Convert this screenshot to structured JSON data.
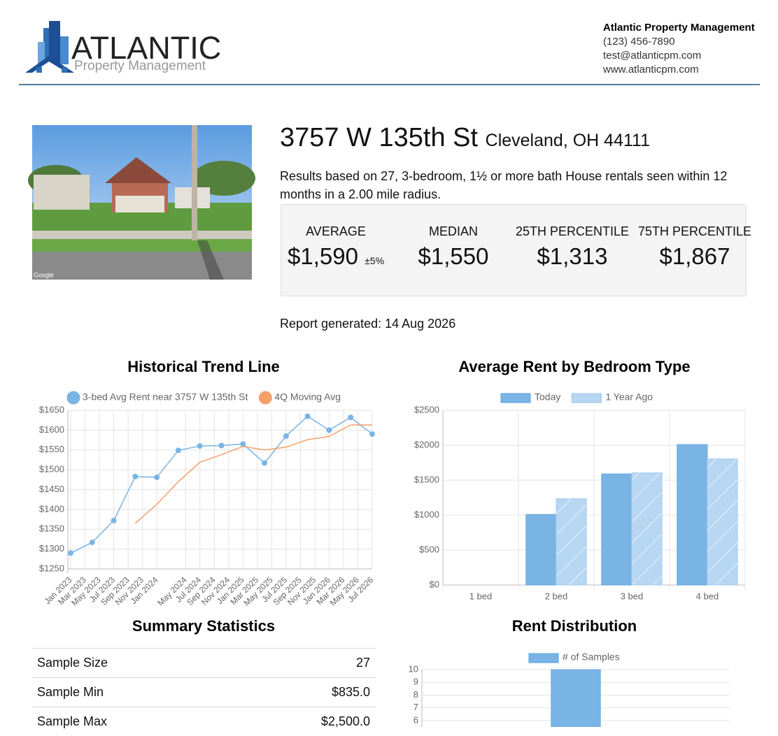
{
  "header": {
    "logo_word": "ATLANTIC",
    "logo_sub": "Property Management",
    "company": "Atlantic Property Management",
    "phone": "(123) 456-7890",
    "email": "test@atlanticpm.com",
    "website": "www.atlanticpm.com"
  },
  "property": {
    "street": "3757 W 135th St",
    "city": "Cleveland, OH 44111",
    "description": "Results based on 27, 3-bedroom, 1½ or more bath House rentals seen within 12 months in a 2.00 mile radius.",
    "photo_credit": "Google"
  },
  "stats": [
    {
      "label": "AVERAGE",
      "value": "$1,590",
      "margin": "±5%"
    },
    {
      "label": "MEDIAN",
      "value": "$1,550"
    },
    {
      "label": "25TH PERCENTILE",
      "value": "$1,313"
    },
    {
      "label": "75TH PERCENTILE",
      "value": "$1,867"
    }
  ],
  "report": "Report generated: 14 Aug 2026",
  "chart_data": [
    {
      "type": "line",
      "title": "Historical Trend Line",
      "x": [
        "Jan 2023",
        "Apr 2023",
        "Jul 2023",
        "Oct 2023",
        "Jan 2024",
        "Apr 2024",
        "Jul 2024",
        "Oct 2024",
        "Jan 2025",
        "Apr 2025",
        "Jul 2025",
        "Oct 2025",
        "Jan 2026",
        "Apr 2026",
        "Jul 2026"
      ],
      "xlim": [
        "Jan 2023",
        "Jul 2026"
      ],
      "xticks": [
        "Jan 2023",
        "Mar 2023",
        "May 2023",
        "Jul 2023",
        "Sep 2023",
        "Nov 2023",
        "Jan 2024",
        "May 2024",
        "Jul 2024",
        "Sep 2024",
        "Nov 2024",
        "Jan 2025",
        "Mar 2025",
        "May 2025",
        "Jul 2025",
        "Sep 2025",
        "Nov 2025",
        "Jan 2026",
        "Mar 2026",
        "May 2026",
        "Jul 2026"
      ],
      "ylim": [
        1250,
        1650
      ],
      "yticks": [
        {
          "value": 1250,
          "label": "$1250"
        },
        {
          "value": 1300,
          "label": "$1300"
        },
        {
          "value": 1350,
          "label": "$1350"
        },
        {
          "value": 1400,
          "label": "$1400"
        },
        {
          "value": 1450,
          "label": "$1450"
        },
        {
          "value": 1500,
          "label": "$1500"
        },
        {
          "value": 1550,
          "label": "$1550"
        },
        {
          "value": 1600,
          "label": "$1600"
        },
        {
          "value": 1650,
          "label": "$1650"
        }
      ],
      "grid": true,
      "legend": "top",
      "series": [
        {
          "name": "3-bed Avg Rent near 3757 W 135th St",
          "color": "#7ab4e5",
          "points": true,
          "values": [
            1290,
            1317,
            1372,
            1483,
            1481,
            1549,
            1560,
            1561,
            1565,
            1517,
            1585,
            1635,
            1600,
            1632,
            1590
          ]
        },
        {
          "name": "4Q Moving Avg",
          "color": "#f5a06a",
          "points": false,
          "values": [
            null,
            null,
            null,
            1365,
            1413,
            1470,
            1519,
            1538,
            1559,
            1550,
            1557,
            1576,
            1584,
            1613,
            1613
          ]
        }
      ]
    },
    {
      "type": "bar",
      "title": "Average Rent by Bedroom Type",
      "categories": [
        "1 bed",
        "2 bed",
        "3 bed",
        "4 bed"
      ],
      "ylim": [
        0,
        2500
      ],
      "yticks": [
        {
          "value": 0,
          "label": "$0"
        },
        {
          "value": 500,
          "label": "$500"
        },
        {
          "value": 1000,
          "label": "$1000"
        },
        {
          "value": 1500,
          "label": "$1500"
        },
        {
          "value": 2000,
          "label": "$2000"
        },
        {
          "value": 2500,
          "label": "$2500"
        }
      ],
      "grid": true,
      "legend": "top",
      "series": [
        {
          "name": "Today",
          "color": "#7ab4e5",
          "hatch": false,
          "values": [
            null,
            1010,
            1590,
            2010
          ]
        },
        {
          "name": "1 Year Ago",
          "color": "#b7d6f2",
          "hatch": true,
          "values": [
            null,
            1235,
            1605,
            1805
          ]
        }
      ]
    },
    {
      "type": "bar",
      "title": "Rent Distribution",
      "categories": [
        null,
        null,
        null,
        null,
        null
      ],
      "ylim": [
        5.5,
        10
      ],
      "yticks": [
        6,
        7,
        8,
        9,
        10
      ],
      "grid": true,
      "legend": "top",
      "series": [
        {
          "name": "# of Samples",
          "color": "#7ab4e5",
          "hatch": false,
          "values": [
            null,
            null,
            10,
            null,
            null
          ]
        }
      ]
    }
  ],
  "summary": {
    "title": "Summary Statistics",
    "rows": [
      [
        "Sample Size",
        "27"
      ],
      [
        "Sample Min",
        "$835.0"
      ],
      [
        "Sample Max",
        "$2,500.0"
      ]
    ]
  }
}
